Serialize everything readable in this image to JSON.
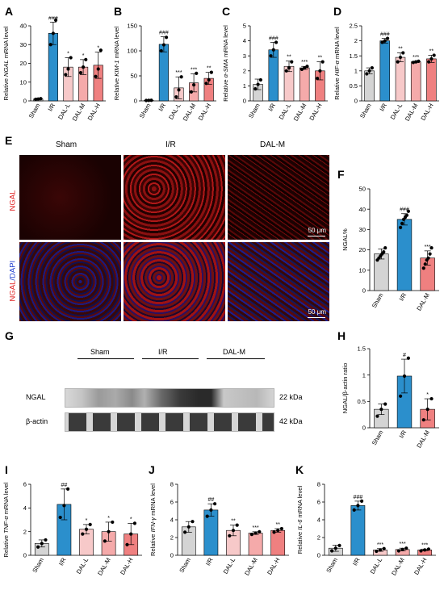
{
  "panel_letters": [
    "A",
    "B",
    "C",
    "D",
    "E",
    "F",
    "G",
    "H",
    "I",
    "J",
    "K"
  ],
  "colors": {
    "sham": "#d4d4d4",
    "ir": "#2b8fcc",
    "dal_l": "#f7c9c9",
    "dal_m": "#f5aaaa",
    "dal_h": "#ef8080",
    "sig": "#000000"
  },
  "micro": {
    "col_labels": [
      "Sham",
      "I/R",
      "DAL-M"
    ],
    "row_label_top": "NGAL",
    "row_label_bottom_a": "NGAL",
    "row_label_bottom_b": "/DAPI",
    "scale_text": "50 μm"
  },
  "western": {
    "group_labels": [
      "Sham",
      "I/R",
      "DAL-M"
    ],
    "row_labels": [
      "NGAL",
      "β-actin"
    ],
    "kda": [
      "22 kDa",
      "42 kDa"
    ]
  },
  "chart_data": [
    {
      "id": "A",
      "type": "bar",
      "ylabel_pre": "Relative ",
      "ylabel_italic": "NGAL",
      "ylabel_post": " mRNA level",
      "ylim": [
        0,
        40
      ],
      "yticks": [
        0,
        10,
        20,
        30,
        40
      ],
      "categories": [
        "Sham",
        "I/R",
        "DAL-L",
        "DAL-M",
        "DAL-H"
      ],
      "values": [
        1,
        36,
        18,
        18,
        19
      ],
      "errors": [
        0.5,
        6,
        5,
        4,
        7
      ],
      "points": [
        [
          0.8,
          1.0,
          1.2
        ],
        [
          30,
          36,
          43
        ],
        [
          14,
          17,
          23
        ],
        [
          15,
          18,
          22
        ],
        [
          13,
          17,
          27
        ]
      ],
      "sig": [
        "",
        "###",
        "*",
        "*",
        "*"
      ]
    },
    {
      "id": "B",
      "type": "bar",
      "ylabel_pre": "Relative ",
      "ylabel_italic": "KIM-1",
      "ylabel_post": " mRNA level",
      "ylim": [
        0,
        150
      ],
      "yticks": [
        0,
        50,
        100,
        150
      ],
      "categories": [
        "Sham",
        "I/R",
        "DAL-L",
        "DAL-M",
        "DAL-H"
      ],
      "values": [
        1,
        113,
        26,
        36,
        45
      ],
      "errors": [
        0.5,
        15,
        22,
        18,
        12
      ],
      "points": [
        [
          0.8,
          1.0,
          1.2
        ],
        [
          100,
          112,
          127
        ],
        [
          8,
          22,
          48
        ],
        [
          18,
          32,
          55
        ],
        [
          35,
          42,
          57
        ]
      ],
      "sig": [
        "",
        "###",
        "***",
        "***",
        "**"
      ]
    },
    {
      "id": "C",
      "type": "bar",
      "ylabel_pre": "Relative ",
      "ylabel_italic": "α-SMA",
      "ylabel_post": " mRNA level",
      "ylim": [
        0,
        5
      ],
      "yticks": [
        0,
        1,
        2,
        3,
        4,
        5
      ],
      "categories": [
        "Sham",
        "I/R",
        "DAL-L",
        "DAL-M",
        "DAL-H"
      ],
      "values": [
        1.1,
        3.4,
        2.3,
        2.2,
        2.0
      ],
      "errors": [
        0.35,
        0.5,
        0.35,
        0.1,
        0.6
      ],
      "points": [
        [
          0.8,
          1.1,
          1.4
        ],
        [
          3.0,
          3.4,
          3.9
        ],
        [
          2.0,
          2.2,
          2.6
        ],
        [
          2.1,
          2.2,
          2.3
        ],
        [
          1.5,
          2.0,
          2.6
        ]
      ],
      "sig": [
        "",
        "###",
        "**",
        "***",
        "**"
      ]
    },
    {
      "id": "D",
      "type": "bar",
      "ylabel_pre": "Relative ",
      "ylabel_italic": "HIF-α",
      "ylabel_post": " mRNA level",
      "ylim": [
        0,
        2.5
      ],
      "yticks": [
        0,
        0.5,
        1.0,
        1.5,
        2.0,
        2.5
      ],
      "categories": [
        "Sham",
        "I/R",
        "DAL-L",
        "DAL-M",
        "DAL-H"
      ],
      "values": [
        1.0,
        2.0,
        1.45,
        1.3,
        1.4
      ],
      "errors": [
        0.1,
        0.08,
        0.15,
        0.02,
        0.12
      ],
      "points": [
        [
          0.9,
          1.0,
          1.1
        ],
        [
          1.95,
          2.0,
          2.08
        ],
        [
          1.3,
          1.45,
          1.6
        ],
        [
          1.28,
          1.3,
          1.32
        ],
        [
          1.3,
          1.4,
          1.52
        ]
      ],
      "sig": [
        "",
        "###",
        "**",
        "***",
        "**"
      ]
    },
    {
      "id": "F",
      "type": "bar",
      "ylabel_pre": "NGAL%",
      "ylabel_italic": "",
      "ylabel_post": "",
      "ylim": [
        0,
        50
      ],
      "yticks": [
        0,
        10,
        20,
        30,
        40,
        50
      ],
      "categories": [
        "Sham",
        "I/R",
        "DAL-M"
      ],
      "values": [
        18,
        35,
        16
      ],
      "errors": [
        2.5,
        2.8,
        3.5
      ],
      "points": [
        [
          15,
          16,
          17,
          18,
          19,
          21
        ],
        [
          31,
          33,
          35,
          36,
          37,
          39
        ],
        [
          11,
          13,
          15,
          16,
          18,
          21
        ]
      ],
      "sig": [
        "",
        "###",
        "***"
      ]
    },
    {
      "id": "H",
      "type": "bar",
      "ylabel_pre": "NGAL/β-actin ratio",
      "ylabel_italic": "",
      "ylabel_post": "",
      "ylim": [
        0,
        1.5
      ],
      "yticks": [
        0,
        0.5,
        1.0,
        1.5
      ],
      "categories": [
        "Sham",
        "I/R",
        "DAL-M"
      ],
      "values": [
        0.35,
        0.98,
        0.35
      ],
      "errors": [
        0.1,
        0.32,
        0.2
      ],
      "points": [
        [
          0.22,
          0.35,
          0.45
        ],
        [
          0.6,
          0.98,
          1.32
        ],
        [
          0.15,
          0.35,
          0.55
        ]
      ],
      "sig": [
        "",
        "#",
        "*"
      ]
    },
    {
      "id": "I",
      "type": "bar",
      "ylabel_pre": "Relative ",
      "ylabel_italic": "TNF-α",
      "ylabel_post": " mRNA level",
      "ylim": [
        0,
        6
      ],
      "yticks": [
        0,
        2,
        4,
        6
      ],
      "categories": [
        "Sham",
        "I/R",
        "DAL-L",
        "DAL-M",
        "DAL-H"
      ],
      "values": [
        1.0,
        4.3,
        2.2,
        2.0,
        1.8
      ],
      "errors": [
        0.3,
        1.3,
        0.4,
        0.8,
        0.9
      ],
      "points": [
        [
          0.7,
          1.0,
          1.3
        ],
        [
          3.2,
          4.2,
          5.6
        ],
        [
          1.8,
          2.2,
          2.6
        ],
        [
          1.2,
          2.0,
          2.8
        ],
        [
          0.9,
          1.8,
          2.7
        ]
      ],
      "sig": [
        "",
        "##",
        "*",
        "*",
        "*"
      ]
    },
    {
      "id": "J",
      "type": "bar",
      "ylabel_pre": "Relative ",
      "ylabel_italic": "IFN-γ",
      "ylabel_post": " mRNA level",
      "ylim": [
        0,
        8
      ],
      "yticks": [
        0,
        2,
        4,
        6,
        8
      ],
      "categories": [
        "Sham",
        "I/R",
        "DAL-L",
        "DAL-M",
        "DAL-H"
      ],
      "values": [
        3.2,
        5.1,
        2.8,
        2.5,
        2.8
      ],
      "errors": [
        0.6,
        0.7,
        0.6,
        0.15,
        0.2
      ],
      "points": [
        [
          2.6,
          3.2,
          3.8
        ],
        [
          4.4,
          5.1,
          5.8
        ],
        [
          2.2,
          2.8,
          3.4
        ],
        [
          2.35,
          2.5,
          2.65
        ],
        [
          2.6,
          2.8,
          3.0
        ]
      ],
      "sig": [
        "",
        "##",
        "**",
        "***",
        "**"
      ]
    },
    {
      "id": "K",
      "type": "bar",
      "ylabel_pre": "Relative ",
      "ylabel_italic": "IL-6",
      "ylabel_post": " mRNA level",
      "ylim": [
        0,
        8
      ],
      "yticks": [
        0,
        2,
        4,
        6,
        8
      ],
      "categories": [
        "Sham",
        "I/R",
        "DAL-L",
        "DAL-M",
        "DAL-H"
      ],
      "values": [
        0.8,
        5.6,
        0.6,
        0.65,
        0.6
      ],
      "errors": [
        0.35,
        0.5,
        0.15,
        0.15,
        0.1
      ],
      "points": [
        [
          0.5,
          0.8,
          1.1
        ],
        [
          5.1,
          5.6,
          6.1
        ],
        [
          0.45,
          0.6,
          0.75
        ],
        [
          0.5,
          0.65,
          0.8
        ],
        [
          0.5,
          0.6,
          0.7
        ]
      ],
      "sig": [
        "",
        "###",
        "***",
        "***",
        "***"
      ]
    }
  ]
}
